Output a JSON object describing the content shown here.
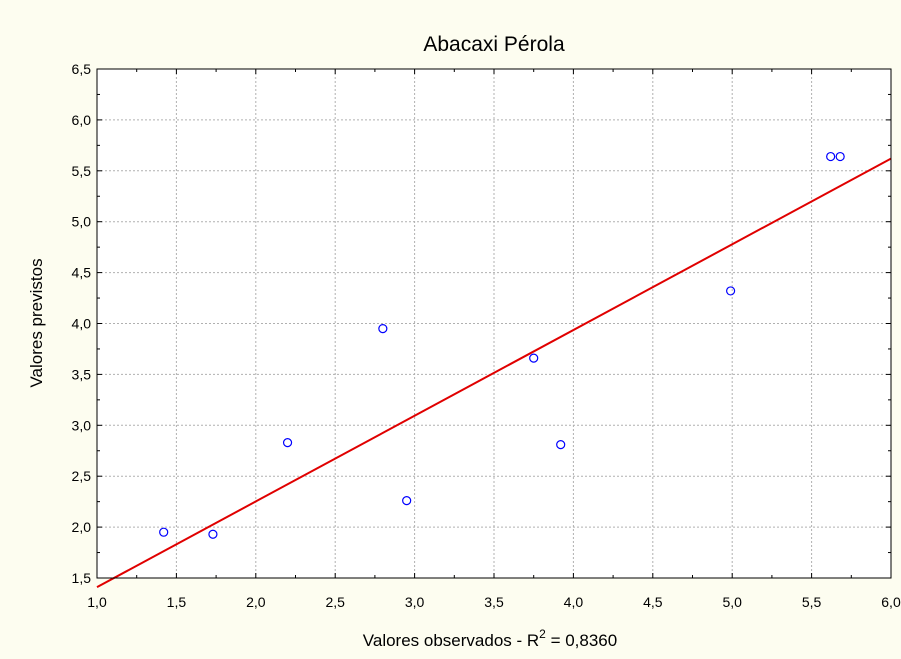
{
  "chart_data": {
    "type": "scatter",
    "title": "Abacaxi Pérola",
    "xlabel_prefix": "Valores observados - R",
    "xlabel_sup": "2",
    "xlabel_suffix": " = 0,8360",
    "ylabel": "Valores previstos",
    "xlim": [
      1.0,
      6.0
    ],
    "ylim": [
      1.5,
      6.5
    ],
    "x_ticks": [
      1.0,
      1.5,
      2.0,
      2.5,
      3.0,
      3.5,
      4.0,
      4.5,
      5.0,
      5.5,
      6.0
    ],
    "x_tick_labels": [
      "1,0",
      "1,5",
      "2,0",
      "2,5",
      "3,0",
      "3,5",
      "4,0",
      "4,5",
      "5,0",
      "5,5",
      "6,0"
    ],
    "y_ticks": [
      1.5,
      2.0,
      2.5,
      3.0,
      3.5,
      4.0,
      4.5,
      5.0,
      5.5,
      6.0,
      6.5
    ],
    "y_tick_labels": [
      "1,5",
      "2,0",
      "2,5",
      "3,0",
      "3,5",
      "4,0",
      "4,5",
      "5,0",
      "5,5",
      "6,0",
      "6,5"
    ],
    "grid": true,
    "points": [
      {
        "x": 1.42,
        "y": 1.95
      },
      {
        "x": 1.73,
        "y": 1.93
      },
      {
        "x": 2.2,
        "y": 2.83
      },
      {
        "x": 2.8,
        "y": 3.95
      },
      {
        "x": 2.95,
        "y": 2.26
      },
      {
        "x": 3.75,
        "y": 3.66
      },
      {
        "x": 3.92,
        "y": 2.81
      },
      {
        "x": 4.99,
        "y": 4.32
      },
      {
        "x": 5.62,
        "y": 5.64
      },
      {
        "x": 5.68,
        "y": 5.64
      }
    ],
    "fit_line": {
      "x": [
        1.0,
        6.0
      ],
      "y": [
        1.41,
        5.62
      ]
    },
    "colors": {
      "points": "#0000ff",
      "fit_line": "#e00000",
      "grid": "#b0b0b0",
      "plot_background": "#ffffff",
      "page_background": "#fdfdf0"
    }
  }
}
